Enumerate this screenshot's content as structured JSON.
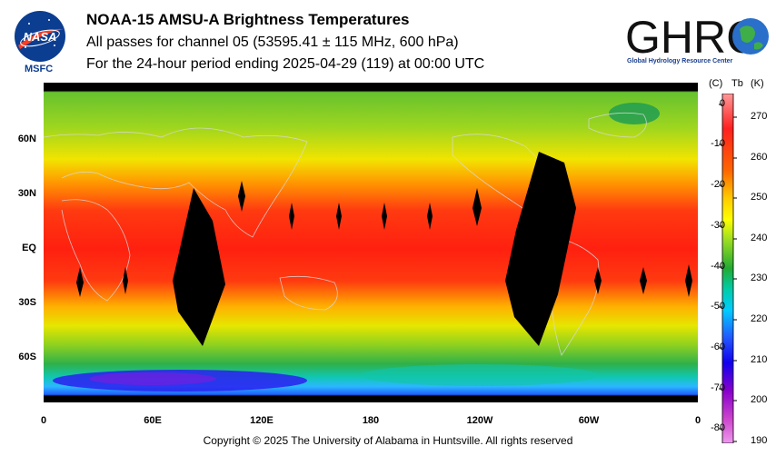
{
  "header": {
    "title": "NOAA-15 AMSU-A Brightness Temperatures",
    "subtitle1": "All passes for channel 05 (53595.41 ± 115 MHz, 600 hPa)",
    "subtitle2": "For the 24-hour period ending 2025-04-29 (119) at 00:00 UTC"
  },
  "logos": {
    "nasa_text": "NASA",
    "msfc_text": "MSFC",
    "ghrc_text": "GHRC",
    "ghrc_subtext": "Global Hydrology Resource Center"
  },
  "map": {
    "lat_labels": [
      "60N",
      "30N",
      "EQ",
      "30S",
      "60S"
    ],
    "lon_labels": [
      "0",
      "60E",
      "120E",
      "180",
      "120W",
      "60W",
      "0"
    ]
  },
  "colorbar": {
    "header_c": "(C)",
    "header_tb": "Tb",
    "header_k": "(K)",
    "celsius_ticks": [
      "0",
      "-10",
      "-20",
      "-30",
      "-40",
      "-50",
      "-60",
      "-70",
      "-80"
    ],
    "kelvin_ticks": [
      "270",
      "260",
      "250",
      "240",
      "230",
      "220",
      "210",
      "200",
      "190"
    ],
    "colors": [
      "#ff9999",
      "#ff2020",
      "#ff6600",
      "#ffcc00",
      "#ffff00",
      "#99dd22",
      "#22aa33",
      "#00ccaa",
      "#00ccff",
      "#2255ff",
      "#1100ee",
      "#8800cc",
      "#cc44cc",
      "#ee99ee"
    ]
  },
  "footer": {
    "copyright": "Copyright © 2025 The University of Alabama in Huntsville.  All rights reserved"
  }
}
